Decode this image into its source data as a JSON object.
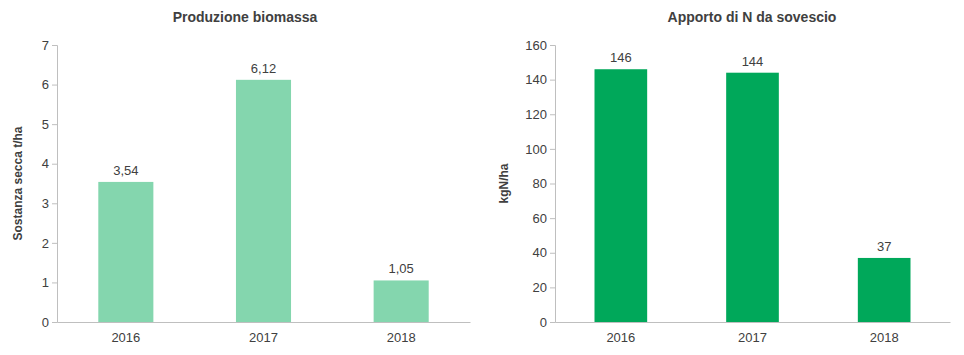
{
  "chart_data": [
    {
      "type": "bar",
      "title": "Produzione biomassa",
      "y_label": "Sostanza secca t/ha",
      "categories": [
        "2016",
        "2017",
        "2018"
      ],
      "values": [
        3.54,
        6.12,
        1.05
      ],
      "value_labels": [
        "3,54",
        "6,12",
        "1,05"
      ],
      "data_labels": true,
      "color": "#84d6ae",
      "ylim": [
        0,
        7
      ],
      "yticks": [
        0,
        1,
        2,
        3,
        4,
        5,
        6,
        7
      ],
      "grid": false
    },
    {
      "type": "bar",
      "title": "Apporto di N da sovescio",
      "y_label": "kgN/ha",
      "categories": [
        "2016",
        "2017",
        "2018"
      ],
      "values": [
        146,
        144,
        37
      ],
      "data_labels": true,
      "color": "#00a85a",
      "ylim": [
        0,
        160
      ],
      "yticks": [
        0,
        20,
        40,
        60,
        80,
        100,
        120,
        140,
        160
      ],
      "grid": false
    }
  ]
}
